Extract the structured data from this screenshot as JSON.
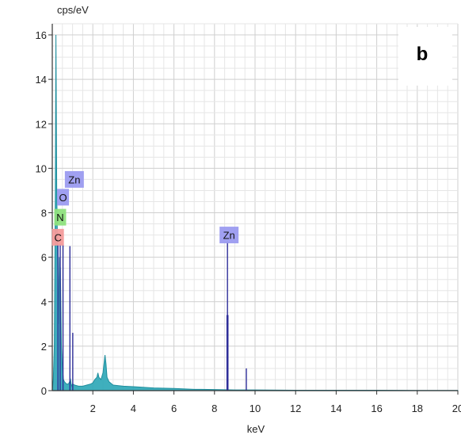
{
  "panel_label": "b",
  "chart_data": {
    "type": "line",
    "title": "",
    "xlabel": "keV",
    "ylabel": "cps/eV",
    "xlim": [
      0,
      20
    ],
    "ylim": [
      0,
      16.5
    ],
    "x_ticks": [
      2,
      4,
      6,
      8,
      10,
      12,
      14,
      16,
      18,
      20
    ],
    "y_ticks": [
      0,
      2,
      4,
      6,
      8,
      10,
      12,
      14,
      16
    ],
    "grid": true,
    "colors": {
      "spectrum_fill": "#2aa6b6",
      "spectrum_line": "#1f8e9d",
      "marker_line": "#2f2f9a",
      "grid": "#dcdcdc",
      "badge_zn": "#9b9bf0",
      "badge_o": "#9b9bf0",
      "badge_n": "#8ee27d",
      "badge_c": "#f49b9b"
    },
    "spectrum": [
      [
        0.0,
        0.0
      ],
      [
        0.05,
        0.5
      ],
      [
        0.1,
        2.0
      ],
      [
        0.15,
        9.0
      ],
      [
        0.18,
        16.0
      ],
      [
        0.22,
        9.0
      ],
      [
        0.26,
        6.5
      ],
      [
        0.3,
        3.0
      ],
      [
        0.35,
        6.0
      ],
      [
        0.4,
        5.5
      ],
      [
        0.45,
        2.0
      ],
      [
        0.5,
        1.0
      ],
      [
        0.55,
        0.5
      ],
      [
        0.6,
        0.4
      ],
      [
        0.7,
        0.3
      ],
      [
        0.8,
        0.3
      ],
      [
        0.9,
        0.5
      ],
      [
        0.95,
        0.2
      ],
      [
        1.0,
        0.3
      ],
      [
        1.1,
        0.25
      ],
      [
        1.3,
        0.2
      ],
      [
        1.5,
        0.2
      ],
      [
        1.7,
        0.25
      ],
      [
        1.9,
        0.3
      ],
      [
        2.0,
        0.35
      ],
      [
        2.1,
        0.5
      ],
      [
        2.2,
        0.6
      ],
      [
        2.25,
        0.8
      ],
      [
        2.3,
        0.6
      ],
      [
        2.4,
        0.5
      ],
      [
        2.5,
        0.8
      ],
      [
        2.55,
        1.2
      ],
      [
        2.6,
        1.6
      ],
      [
        2.65,
        1.2
      ],
      [
        2.7,
        0.6
      ],
      [
        2.8,
        0.4
      ],
      [
        3.0,
        0.25
      ],
      [
        3.5,
        0.2
      ],
      [
        4.0,
        0.18
      ],
      [
        5.0,
        0.12
      ],
      [
        6.0,
        0.1
      ],
      [
        7.0,
        0.06
      ],
      [
        8.0,
        0.05
      ],
      [
        9.0,
        0.03
      ],
      [
        10.0,
        0.03
      ],
      [
        12.0,
        0.02
      ],
      [
        14.0,
        0.02
      ],
      [
        16.0,
        0.02
      ],
      [
        18.0,
        0.01
      ],
      [
        20.0,
        0.01
      ]
    ],
    "marker_lines": [
      {
        "x": 0.28,
        "y": 6.6
      },
      {
        "x": 0.39,
        "y": 6.6
      },
      {
        "x": 0.53,
        "y": 6.6
      },
      {
        "x": 0.87,
        "y": 6.5
      },
      {
        "x": 1.01,
        "y": 2.6
      },
      {
        "x": 8.64,
        "y": 6.7
      },
      {
        "x": 9.57,
        "y": 1.0
      }
    ],
    "marker_stubs": [
      {
        "x": 8.64,
        "y": 3.4
      }
    ],
    "annotations": [
      {
        "label": "Zn",
        "x": 1.01,
        "y": 9.5,
        "color_key": "badge_zn"
      },
      {
        "label": "O",
        "x": 0.53,
        "y": 8.7,
        "color_key": "badge_o"
      },
      {
        "label": "N",
        "x": 0.39,
        "y": 7.8,
        "color_key": "badge_n"
      },
      {
        "label": "C",
        "x": 0.28,
        "y": 6.9,
        "color_key": "badge_c"
      },
      {
        "label": "Zn",
        "x": 8.64,
        "y": 7.0,
        "color_key": "badge_zn"
      }
    ]
  }
}
